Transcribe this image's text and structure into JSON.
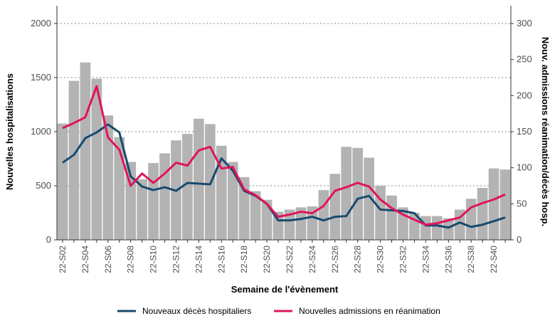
{
  "chart_data": {
    "type": "bar",
    "x_label": "Semaine de l'évènement",
    "y_label": "Nouvelles hospitalisations",
    "y2_label": "Nouv. admissions réanimation/décès hosp.",
    "categories": [
      "22-S02",
      null,
      "22-S04",
      null,
      "22-S06",
      null,
      "22-S08",
      null,
      "22-S10",
      null,
      "22-S12",
      null,
      "22-S14",
      null,
      "22-S16",
      null,
      "22-S18",
      null,
      "22-S20",
      null,
      "22-S22",
      null,
      "22-S24",
      null,
      "22-S26",
      null,
      "22-S28",
      null,
      "22-S30",
      null,
      "22-S32",
      null,
      "22-S34",
      null,
      "22-S36",
      null,
      "22-S38",
      null,
      "22-S40",
      null
    ],
    "values": [
      1075,
      1470,
      1640,
      1490,
      1150,
      950,
      720,
      560,
      710,
      800,
      920,
      980,
      1120,
      1070,
      870,
      720,
      580,
      450,
      370,
      260,
      280,
      300,
      310,
      460,
      610,
      860,
      850,
      760,
      500,
      410,
      300,
      250,
      220,
      220,
      200,
      280,
      380,
      480,
      660,
      650
    ],
    "color": "#b3b3b3",
    "series": [
      {
        "name": "Nouveaux décès hospitaliers",
        "type": "line",
        "axis": "y2",
        "color": "#184a6e",
        "values": [
          107,
          118,
          141,
          149,
          160,
          149,
          88,
          74,
          69,
          73,
          68,
          79,
          78,
          77,
          113,
          96,
          68,
          61,
          50,
          27,
          27,
          29,
          32,
          27,
          32,
          33,
          57,
          61,
          42,
          41,
          40,
          37,
          20,
          20,
          17,
          24,
          18,
          21,
          26,
          31
        ]
      },
      {
        "name": "Nouvelles admissions en réanimation",
        "type": "line",
        "axis": "y2",
        "color": "#e0145c",
        "values": [
          155,
          162,
          170,
          213,
          142,
          125,
          75,
          92,
          79,
          92,
          107,
          103,
          124,
          129,
          99,
          101,
          70,
          62,
          50,
          32,
          35,
          39,
          37,
          47,
          68,
          73,
          79,
          74,
          56,
          44,
          35,
          28,
          21,
          23,
          27,
          31,
          45,
          51,
          56,
          63
        ]
      }
    ],
    "ylim": [
      0,
      2000
    ],
    "yticks": [
      0,
      500,
      1000,
      1500,
      2000
    ],
    "y2lim": [
      0,
      300
    ],
    "y2ticks": [
      0,
      50,
      100,
      150,
      200,
      250,
      300
    ],
    "grid": true
  }
}
